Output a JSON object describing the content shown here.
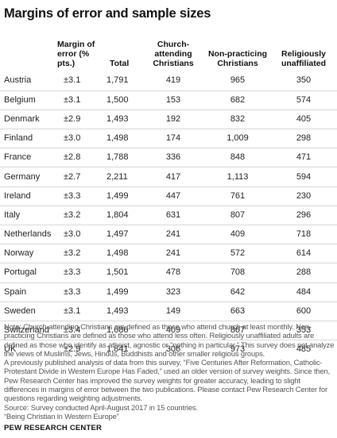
{
  "title": "Margins of error and sample sizes",
  "columns": {
    "country": "",
    "moe": "Margin of error (% pts.)",
    "total": "Total",
    "church": "Church-attending Christians",
    "nonpracticing": "Non-practicing Christians",
    "unaffiliated": "Religiously unaffiliated"
  },
  "rows": [
    {
      "country": "Austria",
      "moe": "±3.1",
      "total": "1,791",
      "church": "419",
      "nonpracticing": "965",
      "unaffiliated": "350"
    },
    {
      "country": "Belgium",
      "moe": "±3.1",
      "total": "1,500",
      "church": "153",
      "nonpracticing": "682",
      "unaffiliated": "574"
    },
    {
      "country": "Denmark",
      "moe": "±2.9",
      "total": "1,493",
      "church": "192",
      "nonpracticing": "832",
      "unaffiliated": "405"
    },
    {
      "country": "Finland",
      "moe": "±3.0",
      "total": "1,498",
      "church": "174",
      "nonpracticing": "1,009",
      "unaffiliated": "298"
    },
    {
      "country": "France",
      "moe": "±2.8",
      "total": "1,788",
      "church": "336",
      "nonpracticing": "848",
      "unaffiliated": "471"
    },
    {
      "country": "Germany",
      "moe": "±2.7",
      "total": "2,211",
      "church": "417",
      "nonpracticing": "1,113",
      "unaffiliated": "594"
    },
    {
      "country": "Ireland",
      "moe": "±3.3",
      "total": "1,499",
      "church": "447",
      "nonpracticing": "761",
      "unaffiliated": "230"
    },
    {
      "country": "Italy",
      "moe": "±3.2",
      "total": "1,804",
      "church": "631",
      "nonpracticing": "807",
      "unaffiliated": "296"
    },
    {
      "country": "Netherlands",
      "moe": "±3.0",
      "total": "1,497",
      "church": "241",
      "nonpracticing": "409",
      "unaffiliated": "718"
    },
    {
      "country": "Norway",
      "moe": "±3.2",
      "total": "1,498",
      "church": "241",
      "nonpracticing": "572",
      "unaffiliated": "614"
    },
    {
      "country": "Portugal",
      "moe": "±3.3",
      "total": "1,501",
      "church": "478",
      "nonpracticing": "708",
      "unaffiliated": "288"
    },
    {
      "country": "Spain",
      "moe": "±3.3",
      "total": "1,499",
      "church": "323",
      "nonpracticing": "642",
      "unaffiliated": "484"
    },
    {
      "country": "Sweden",
      "moe": "±3.1",
      "total": "1,493",
      "church": "149",
      "nonpracticing": "663",
      "unaffiliated": "600"
    },
    {
      "country": "Switzerland",
      "moe": "±3.4",
      "total": "1,686",
      "church": "409",
      "nonpracticing": "867",
      "unaffiliated": "353"
    },
    {
      "country": "UK",
      "moe": "±2.9",
      "total": "1,841",
      "church": "306",
      "nonpracticing": "973",
      "unaffiliated": "485"
    }
  ],
  "notes": [
    "Note: Church-attending Christians are defined as those who attend church at least monthly. Non-practicing Christians are defined as those who attend less often. Religiously unaffiliated adults are defined as those who identify as atheist, agnostic or “nothing in particular.” This survey does not analyze the views of Muslims, Jews, Hindus, Buddhists and other smaller religious groups.",
    "A previously published analysis of data from this survey, “Five Centuries After Reformation, Catholic-Protestant Divide in Western Europe Has Faded,” used an older version of survey weights. Since then, Pew Research Center has improved the survey weights for greater accuracy, leading to slight differences in margins of error between the two publications. Please contact Pew Research Center for questions regarding weighting adjustments.",
    "Source: Survey conducted April-August 2017 in 15 countries.",
    "“Being Christian in Western Europe”"
  ],
  "footer": "PEW RESEARCH CENTER"
}
